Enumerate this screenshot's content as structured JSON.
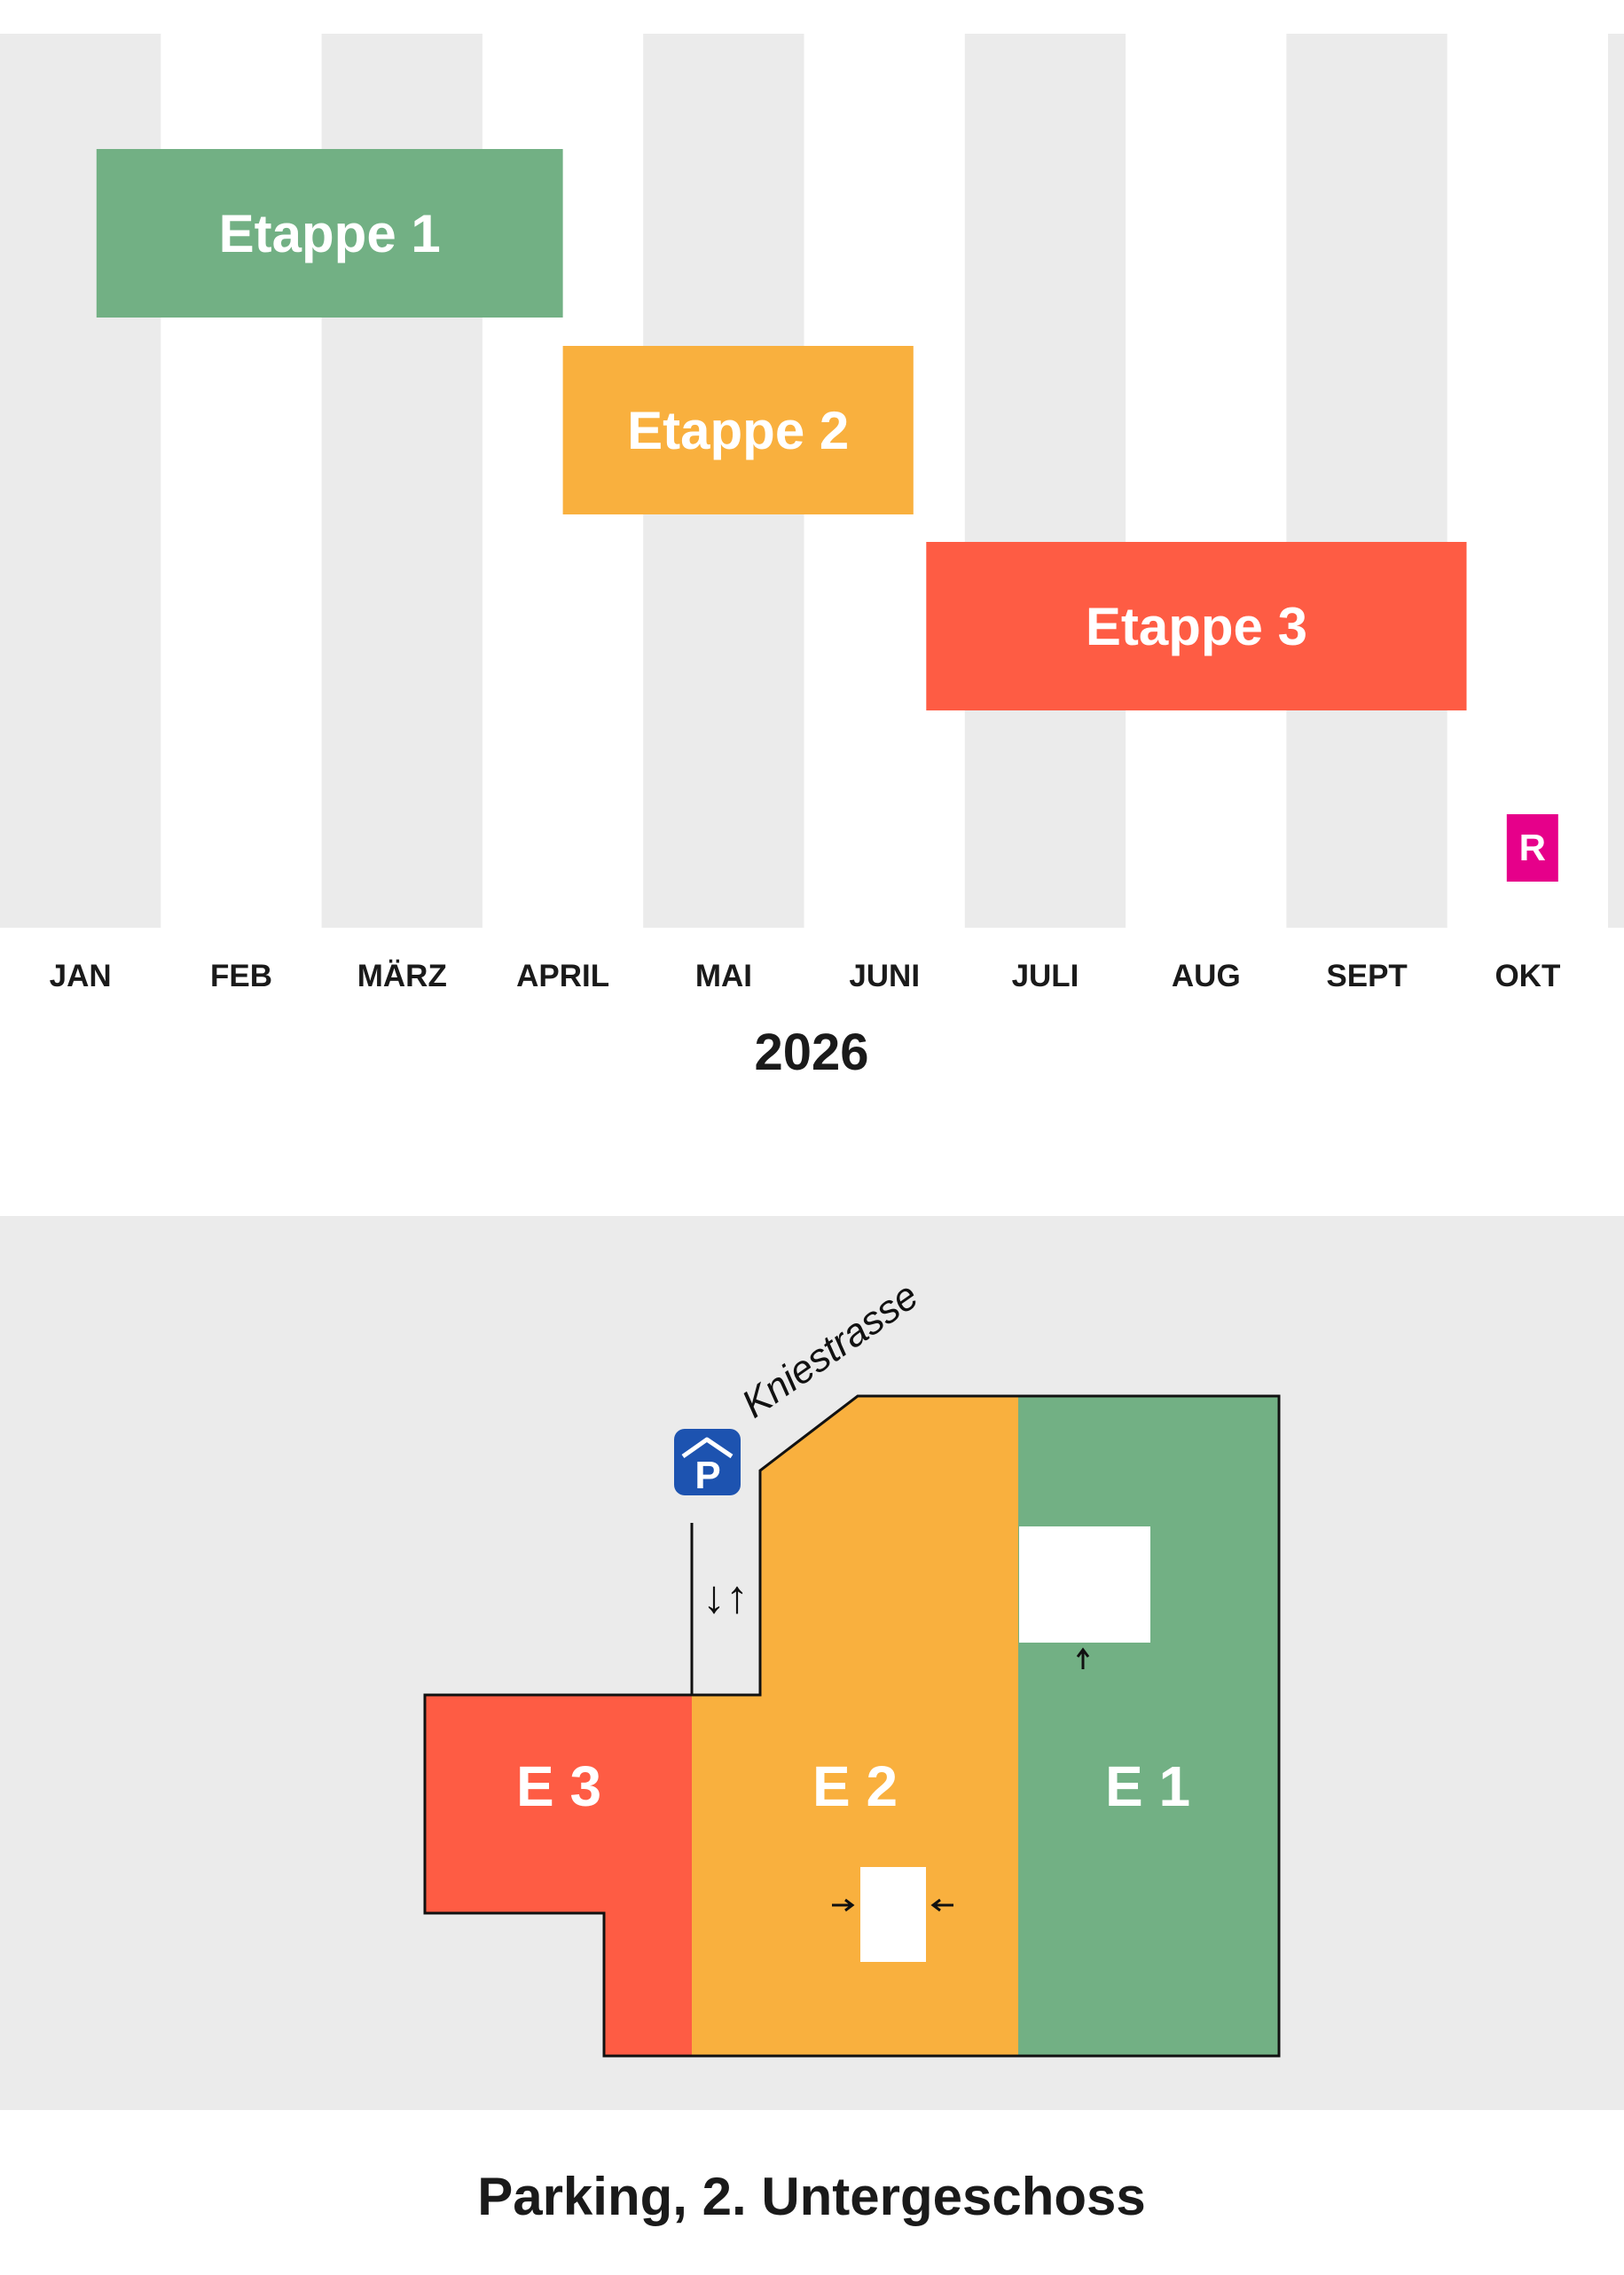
{
  "colors": {
    "stripe": "#ebebeb",
    "etappe_1": "#72b084",
    "etappe_2": "#f9b03e",
    "etappe_3": "#fe5c44",
    "marker": "#e6008a",
    "parking_sign": "#1d53b0",
    "map_bg": "#ebebeb"
  },
  "timeline": {
    "year": "2026",
    "months": [
      "JAN",
      "FEB",
      "MÄRZ",
      "APRIL",
      "MAI",
      "JUNI",
      "JULI",
      "AUG",
      "SEPT",
      "OKT"
    ],
    "stages": [
      {
        "label": "Etappe 1",
        "start_month": 0.6,
        "end_month": 3.5,
        "color_key": "etappe_1"
      },
      {
        "label": "Etappe 2",
        "start_month": 3.5,
        "end_month": 5.68,
        "color_key": "etappe_2"
      },
      {
        "label": "Etappe 3",
        "start_month": 5.76,
        "end_month": 9.12,
        "color_key": "etappe_3"
      }
    ],
    "marker": {
      "label": "R",
      "month": 9.37
    }
  },
  "map": {
    "street": "Kniestrasse",
    "parking_icon": "parking-garage-icon",
    "entrance_arrows": "↓↑",
    "zones": [
      {
        "label": "E 3",
        "color_key": "etappe_3"
      },
      {
        "label": "E 2",
        "color_key": "etappe_2"
      },
      {
        "label": "E 1",
        "color_key": "etappe_1"
      }
    ]
  },
  "caption": "Parking, 2. Untergeschoss"
}
